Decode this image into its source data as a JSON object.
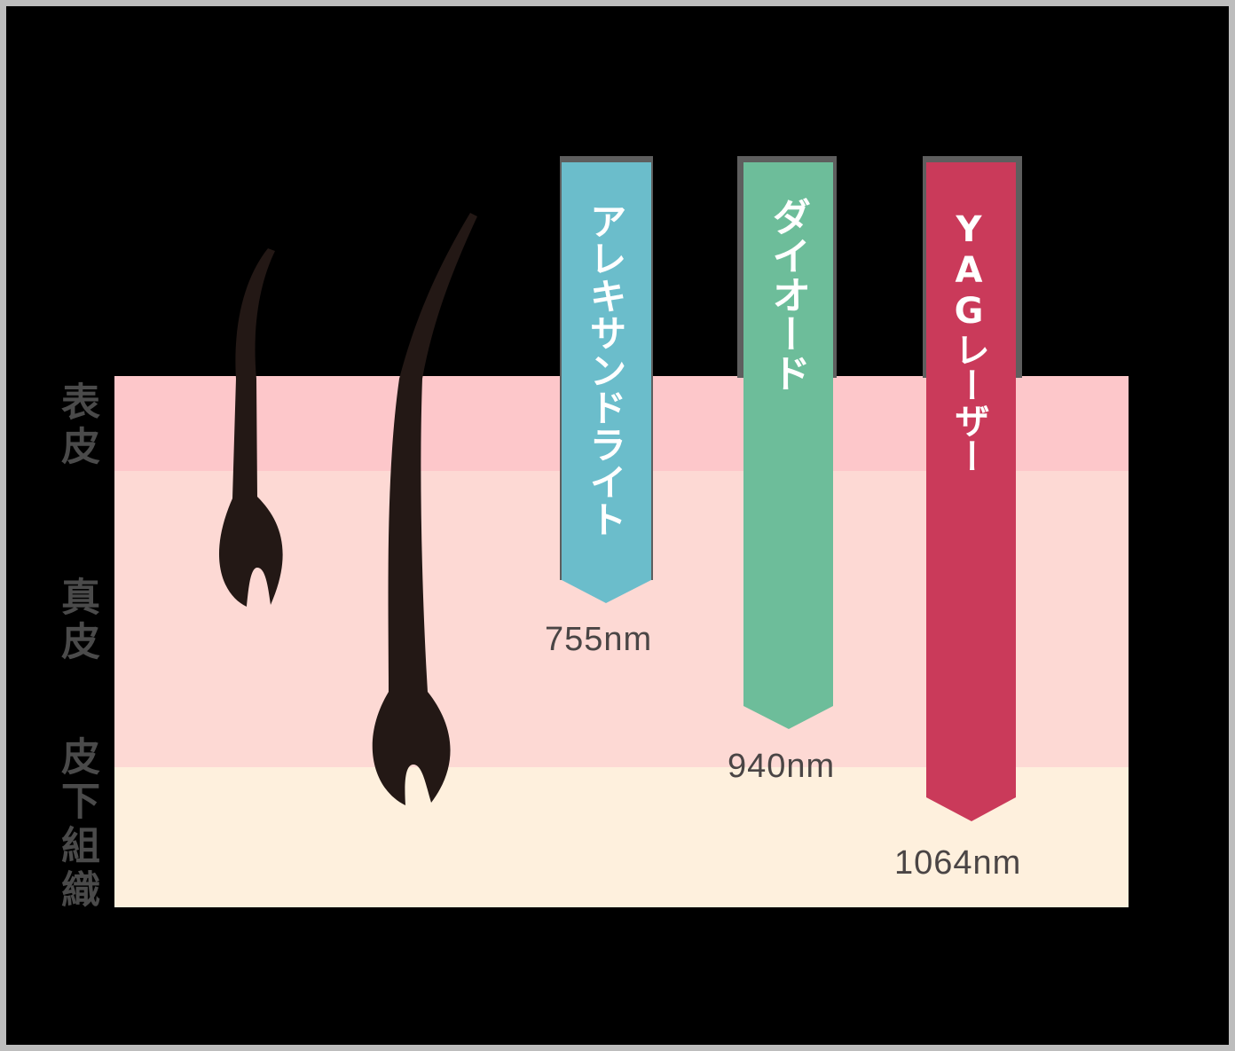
{
  "layers": [
    {
      "name": "表皮",
      "color": "#fdc7ca"
    },
    {
      "name": "真皮",
      "color": "#fdd9d4"
    },
    {
      "name": "皮下組織",
      "color": "#fef0dd"
    }
  ],
  "lasers": [
    {
      "name": "アレキサンドライト",
      "wavelength": "755nm",
      "color": "#6bbdcb"
    },
    {
      "name": "ダイオード",
      "wavelength": "940nm",
      "color": "#6dbd9a"
    },
    {
      "name": "YAGレーザー",
      "wavelength": "1064nm",
      "color": "#ca3a5a"
    }
  ],
  "hair_color": "#231815"
}
